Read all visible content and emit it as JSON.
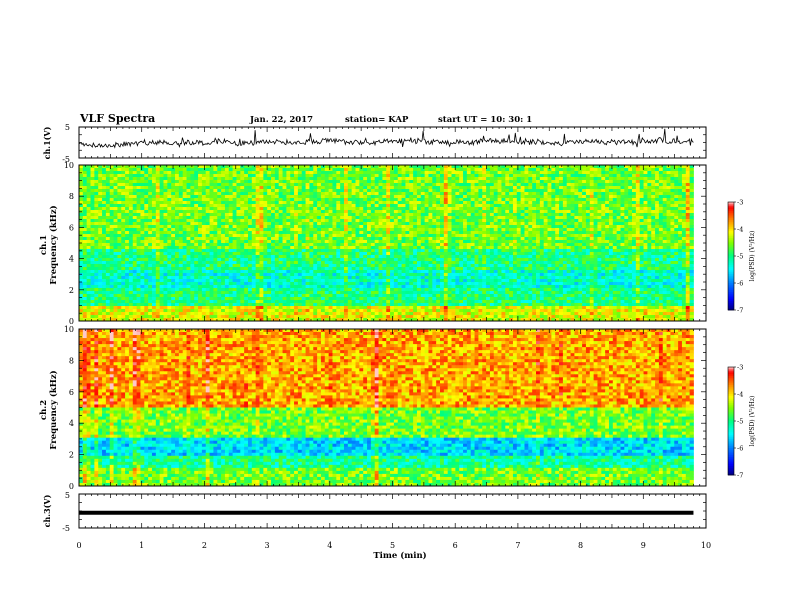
{
  "header": {
    "title": "VLF Spectra",
    "date": "Jan. 22, 2017",
    "station": "station= KAP",
    "start": "start  UT =   10: 30: 1"
  },
  "colorbar": {
    "label": "log(PSD) (V²/Hz)",
    "ticks": [
      "-3",
      "-4",
      "-5",
      "-6",
      "-7"
    ],
    "colors": [
      "#000080",
      "#0000ff",
      "#0080ff",
      "#00ffff",
      "#00ff80",
      "#80ff00",
      "#ffff00",
      "#ff8000",
      "#ff0000",
      "#ffffff"
    ]
  },
  "chart_data": [
    {
      "type": "line",
      "ylabel": "ch.1(V)",
      "ylim": [
        -5,
        5
      ],
      "yticks": [
        "5",
        "-5"
      ],
      "xlim": [
        0,
        10
      ],
      "note": "noisy trace around 0 V (range about -2..+3 V)"
    },
    {
      "type": "heatmap",
      "ylabel_line1": "ch.1",
      "ylabel_line2": "Frequency  (kHz)",
      "ylim": [
        0,
        10
      ],
      "yticks": [
        "0",
        "2",
        "4",
        "6",
        "8",
        "10"
      ],
      "xlim": [
        0,
        9.8
      ],
      "value_range": [
        -7,
        -3
      ],
      "bands": [
        {
          "freq": [
            0,
            1
          ],
          "level": -4.2
        },
        {
          "freq": [
            1,
            2.3
          ],
          "level": -5.0
        },
        {
          "freq": [
            2.3,
            3.4
          ],
          "level": -5.3
        },
        {
          "freq": [
            3.4,
            4.8
          ],
          "level": -5.0
        },
        {
          "freq": [
            4.8,
            10
          ],
          "level": -4.6
        }
      ]
    },
    {
      "type": "heatmap",
      "ylabel_line1": "ch.2",
      "ylabel_line2": "Frequency  (kHz)",
      "ylim": [
        0,
        10
      ],
      "yticks": [
        "0",
        "2",
        "4",
        "6",
        "8",
        "10"
      ],
      "xlim": [
        0,
        9.8
      ],
      "value_range": [
        -7,
        -3
      ],
      "bands": [
        {
          "freq": [
            0,
            1.2
          ],
          "level": -4.6
        },
        {
          "freq": [
            1.2,
            2.0
          ],
          "level": -5.1
        },
        {
          "freq": [
            2.0,
            3.2
          ],
          "level": -5.6
        },
        {
          "freq": [
            3.2,
            5.0
          ],
          "level": -4.6
        },
        {
          "freq": [
            5.0,
            10
          ],
          "level": -3.8
        }
      ]
    },
    {
      "type": "line",
      "ylabel": "ch.3(V)",
      "ylim": [
        -5,
        5
      ],
      "yticks": [
        "5",
        "-5"
      ],
      "xlim": [
        0,
        10
      ],
      "xlabel": "Time  (min)",
      "xticks": [
        "0",
        "1",
        "2",
        "3",
        "4",
        "5",
        "6",
        "7",
        "8",
        "9",
        "10"
      ],
      "value": -0.5,
      "note": "flat constant line"
    }
  ]
}
